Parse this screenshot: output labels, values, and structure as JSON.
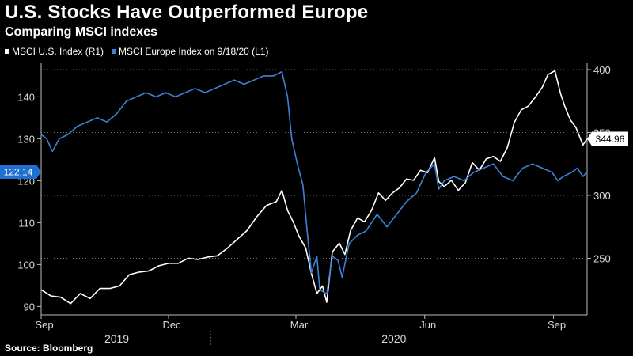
{
  "header": {
    "title": "U.S. Stocks Have Outperformed Europe",
    "subtitle": "Comparing MSCI indexes"
  },
  "source": "Source: Bloomberg",
  "colors": {
    "us": "#ffffff",
    "europe": "#3d82d6",
    "flag_bg_right": "#ffffff",
    "flag_bg_left": "#1f6fd1"
  },
  "chart_data": {
    "type": "line",
    "title": "U.S. Stocks Have Outperformed Europe",
    "subtitle": "Comparing MSCI indexes",
    "x_range": [
      "2019-09-01",
      "2020-09-25"
    ],
    "x_ticks": [
      {
        "label": "Sep",
        "date": "2019-09-01"
      },
      {
        "label": "Dec",
        "date": "2019-12-01"
      },
      {
        "label": "Mar",
        "date": "2020-03-01"
      },
      {
        "label": "Jun",
        "date": "2020-06-01"
      },
      {
        "label": "Sep",
        "date": "2020-09-01"
      }
    ],
    "year_labels": [
      {
        "label": "2019",
        "date": "2019-10-25"
      },
      {
        "label": "2020",
        "date": "2020-05-10"
      }
    ],
    "left_axis": {
      "min": 88,
      "max": 148,
      "ticks": [
        90,
        100,
        110,
        120,
        130,
        140
      ]
    },
    "right_axis": {
      "min": 205,
      "max": 405,
      "ticks": [
        250,
        300,
        350,
        400
      ]
    },
    "last_labels": {
      "europe": "122.14",
      "us": "344.96"
    },
    "series": [
      {
        "name": "MSCI U.S. Index (R1)",
        "axis": "right",
        "points": [
          [
            "2019-09-01",
            225
          ],
          [
            "2019-09-08",
            220
          ],
          [
            "2019-09-15",
            219
          ],
          [
            "2019-09-22",
            214
          ],
          [
            "2019-09-29",
            222
          ],
          [
            "2019-10-06",
            218
          ],
          [
            "2019-10-13",
            226
          ],
          [
            "2019-10-20",
            226
          ],
          [
            "2019-10-27",
            228
          ],
          [
            "2019-11-03",
            237
          ],
          [
            "2019-11-10",
            239
          ],
          [
            "2019-11-17",
            240
          ],
          [
            "2019-11-24",
            244
          ],
          [
            "2019-12-01",
            246
          ],
          [
            "2019-12-08",
            246
          ],
          [
            "2019-12-15",
            250
          ],
          [
            "2019-12-22",
            249
          ],
          [
            "2019-12-29",
            251
          ],
          [
            "2020-01-05",
            252
          ],
          [
            "2020-01-12",
            258
          ],
          [
            "2020-01-19",
            265
          ],
          [
            "2020-01-26",
            272
          ],
          [
            "2020-02-02",
            283
          ],
          [
            "2020-02-09",
            292
          ],
          [
            "2020-02-16",
            295
          ],
          [
            "2020-02-20",
            304
          ],
          [
            "2020-02-24",
            288
          ],
          [
            "2020-02-28",
            279
          ],
          [
            "2020-03-03",
            268
          ],
          [
            "2020-03-08",
            258
          ],
          [
            "2020-03-12",
            238
          ],
          [
            "2020-03-16",
            222
          ],
          [
            "2020-03-20",
            228
          ],
          [
            "2020-03-23",
            215
          ],
          [
            "2020-03-27",
            255
          ],
          [
            "2020-04-01",
            262
          ],
          [
            "2020-04-05",
            253
          ],
          [
            "2020-04-09",
            272
          ],
          [
            "2020-04-14",
            282
          ],
          [
            "2020-04-19",
            279
          ],
          [
            "2020-04-24",
            288
          ],
          [
            "2020-04-29",
            302
          ],
          [
            "2020-05-04",
            296
          ],
          [
            "2020-05-09",
            302
          ],
          [
            "2020-05-14",
            306
          ],
          [
            "2020-05-19",
            313
          ],
          [
            "2020-05-24",
            312
          ],
          [
            "2020-05-29",
            320
          ],
          [
            "2020-06-03",
            318
          ],
          [
            "2020-06-08",
            330
          ],
          [
            "2020-06-11",
            311
          ],
          [
            "2020-06-15",
            307
          ],
          [
            "2020-06-20",
            312
          ],
          [
            "2020-06-25",
            304
          ],
          [
            "2020-06-30",
            310
          ],
          [
            "2020-07-05",
            326
          ],
          [
            "2020-07-10",
            320
          ],
          [
            "2020-07-15",
            329
          ],
          [
            "2020-07-20",
            331
          ],
          [
            "2020-07-25",
            327
          ],
          [
            "2020-07-30",
            338
          ],
          [
            "2020-08-04",
            358
          ],
          [
            "2020-08-09",
            368
          ],
          [
            "2020-08-14",
            371
          ],
          [
            "2020-08-19",
            378
          ],
          [
            "2020-08-24",
            386
          ],
          [
            "2020-08-28",
            396
          ],
          [
            "2020-09-02",
            399
          ],
          [
            "2020-09-06",
            381
          ],
          [
            "2020-09-09",
            371
          ],
          [
            "2020-09-13",
            360
          ],
          [
            "2020-09-17",
            354
          ],
          [
            "2020-09-22",
            340
          ],
          [
            "2020-09-25",
            344.96
          ]
        ]
      },
      {
        "name": "MSCI Europe Index on 9/18/20 (L1)",
        "axis": "left",
        "points": [
          [
            "2019-09-01",
            131
          ],
          [
            "2019-09-05",
            130
          ],
          [
            "2019-09-09",
            127
          ],
          [
            "2019-09-14",
            130
          ],
          [
            "2019-09-20",
            131
          ],
          [
            "2019-09-27",
            133
          ],
          [
            "2019-10-04",
            134
          ],
          [
            "2019-10-11",
            135
          ],
          [
            "2019-10-18",
            134
          ],
          [
            "2019-10-25",
            136
          ],
          [
            "2019-11-01",
            139
          ],
          [
            "2019-11-08",
            140
          ],
          [
            "2019-11-15",
            141
          ],
          [
            "2019-11-22",
            140
          ],
          [
            "2019-11-29",
            141
          ],
          [
            "2019-12-06",
            140
          ],
          [
            "2019-12-13",
            141
          ],
          [
            "2019-12-20",
            142
          ],
          [
            "2019-12-27",
            141
          ],
          [
            "2020-01-03",
            142
          ],
          [
            "2020-01-10",
            143
          ],
          [
            "2020-01-17",
            144
          ],
          [
            "2020-01-24",
            143
          ],
          [
            "2020-01-31",
            144
          ],
          [
            "2020-02-07",
            145
          ],
          [
            "2020-02-14",
            145
          ],
          [
            "2020-02-20",
            146
          ],
          [
            "2020-02-24",
            140
          ],
          [
            "2020-02-27",
            130
          ],
          [
            "2020-03-02",
            124
          ],
          [
            "2020-03-06",
            119
          ],
          [
            "2020-03-09",
            108
          ],
          [
            "2020-03-12",
            98
          ],
          [
            "2020-03-16",
            102
          ],
          [
            "2020-03-18",
            94
          ],
          [
            "2020-03-23",
            93
          ],
          [
            "2020-03-27",
            102
          ],
          [
            "2020-03-31",
            101
          ],
          [
            "2020-04-03",
            97
          ],
          [
            "2020-04-08",
            105
          ],
          [
            "2020-04-14",
            107
          ],
          [
            "2020-04-20",
            108
          ],
          [
            "2020-04-28",
            112
          ],
          [
            "2020-05-05",
            109
          ],
          [
            "2020-05-12",
            112
          ],
          [
            "2020-05-19",
            115
          ],
          [
            "2020-05-26",
            117
          ],
          [
            "2020-06-02",
            122
          ],
          [
            "2020-06-08",
            124
          ],
          [
            "2020-06-11",
            118
          ],
          [
            "2020-06-15",
            120
          ],
          [
            "2020-06-22",
            121
          ],
          [
            "2020-06-29",
            120
          ],
          [
            "2020-07-06",
            122
          ],
          [
            "2020-07-13",
            123
          ],
          [
            "2020-07-20",
            124
          ],
          [
            "2020-07-27",
            121
          ],
          [
            "2020-08-03",
            120
          ],
          [
            "2020-08-10",
            123
          ],
          [
            "2020-08-17",
            124
          ],
          [
            "2020-08-24",
            123
          ],
          [
            "2020-08-31",
            122
          ],
          [
            "2020-09-04",
            120
          ],
          [
            "2020-09-08",
            121
          ],
          [
            "2020-09-14",
            122
          ],
          [
            "2020-09-18",
            123
          ],
          [
            "2020-09-22",
            121
          ],
          [
            "2020-09-25",
            122.14
          ]
        ]
      }
    ]
  }
}
